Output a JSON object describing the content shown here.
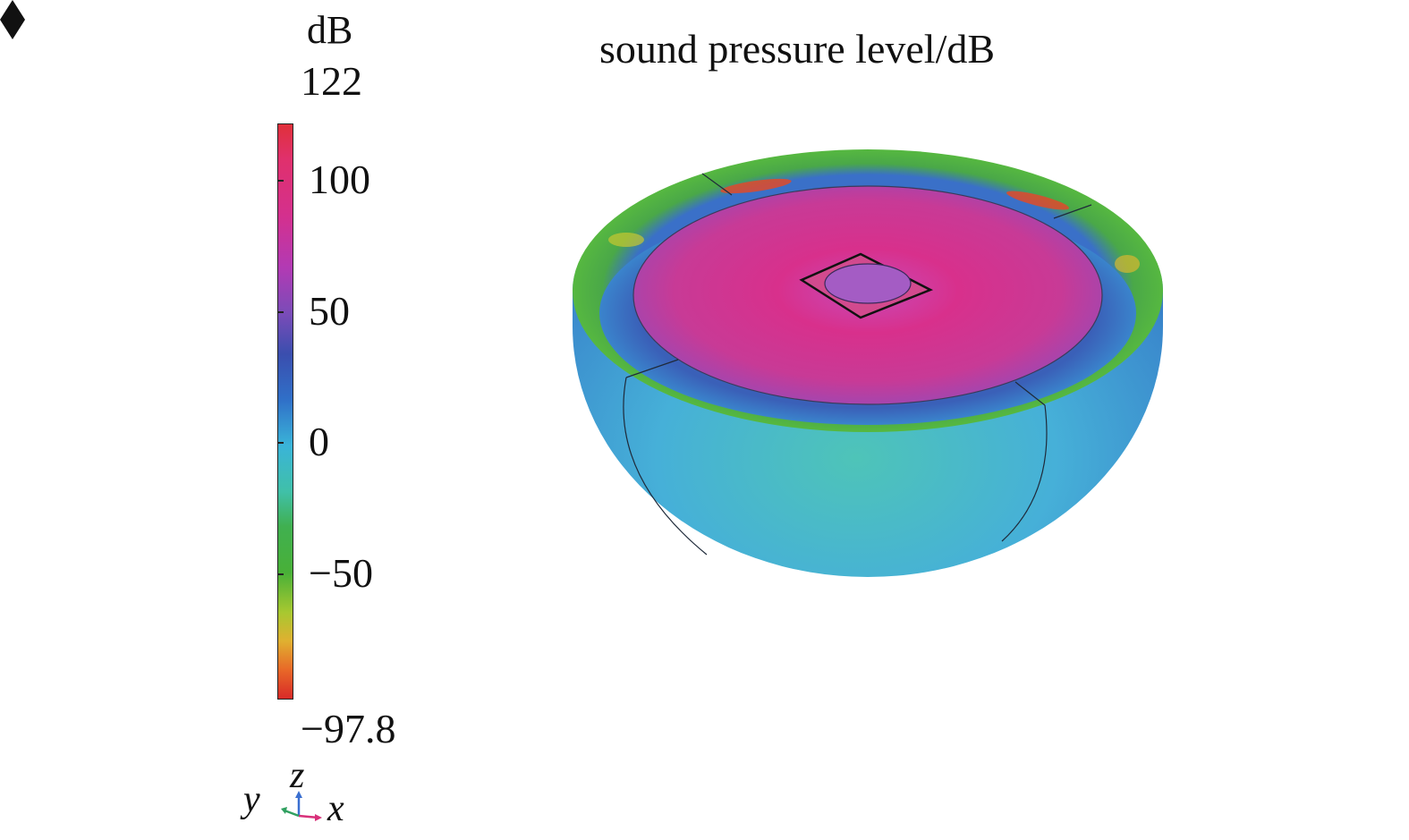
{
  "title": "sound pressure level/dB",
  "colorbar": {
    "unit": "dB",
    "max": "122",
    "min": "−97.8",
    "ticks": [
      {
        "value": 100,
        "label": "100"
      },
      {
        "value": 50,
        "label": "50"
      },
      {
        "value": 0,
        "label": "0"
      },
      {
        "value": -50,
        "label": "−50"
      }
    ],
    "range": [
      -97.8,
      122
    ]
  },
  "axes": {
    "y": "y",
    "z": "z",
    "x": "x"
  },
  "colors": {
    "max": "#e0303a",
    "magenta": "#d4308e",
    "blue": "#3070c8",
    "cyan": "#3ab4d8",
    "green": "#48b038",
    "min": "#d82a28"
  }
}
